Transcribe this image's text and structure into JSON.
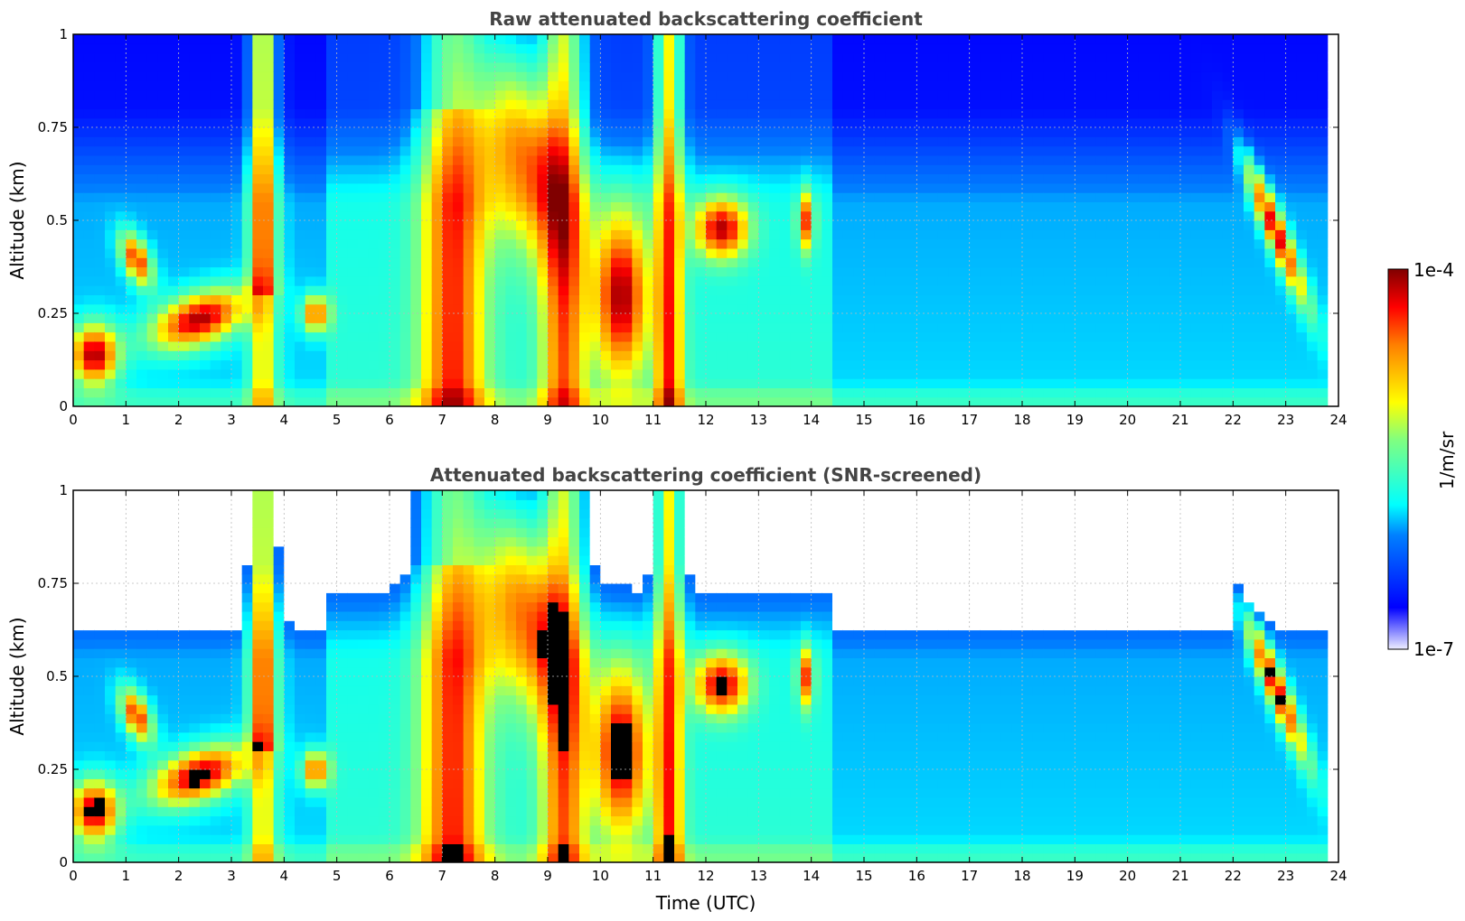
{
  "chart_data": [
    {
      "type": "heatmap",
      "title": "Raw attenuated backscattering coefficient",
      "xlabel": "",
      "ylabel": "Altitude (km)",
      "xlim": [
        0,
        24
      ],
      "ylim": [
        0,
        1
      ],
      "x_ticks": [
        "0",
        "1",
        "2",
        "3",
        "4",
        "5",
        "6",
        "7",
        "8",
        "9",
        "10",
        "11",
        "12",
        "13",
        "14",
        "15",
        "16",
        "17",
        "18",
        "19",
        "20",
        "21",
        "22",
        "23",
        "24"
      ],
      "y_ticks": [
        "0",
        "0.25",
        "0.5",
        "0.75",
        "1"
      ],
      "grid": true,
      "colorscale": "jet",
      "color_range": [
        "1e-7",
        "1e-4"
      ],
      "color_unit": "1/m/sr"
    },
    {
      "type": "heatmap",
      "title": "Attenuated backscattering coefficient (SNR-screened)",
      "xlabel": "Time (UTC)",
      "ylabel": "Altitude (km)",
      "xlim": [
        0,
        24
      ],
      "ylim": [
        0,
        1
      ],
      "x_ticks": [
        "0",
        "1",
        "2",
        "3",
        "4",
        "5",
        "6",
        "7",
        "8",
        "9",
        "10",
        "11",
        "12",
        "13",
        "14",
        "15",
        "16",
        "17",
        "18",
        "19",
        "20",
        "21",
        "22",
        "23",
        "24"
      ],
      "y_ticks": [
        "0",
        "0.25",
        "0.5",
        "0.75",
        "1"
      ],
      "grid": true,
      "colorscale": "jet",
      "color_range": [
        "1e-7",
        "1e-4"
      ],
      "color_unit": "1/m/sr"
    }
  ],
  "colorbar": {
    "max_label": "1e-4",
    "min_label": "1e-7",
    "unit_label": "1/m/sr"
  }
}
